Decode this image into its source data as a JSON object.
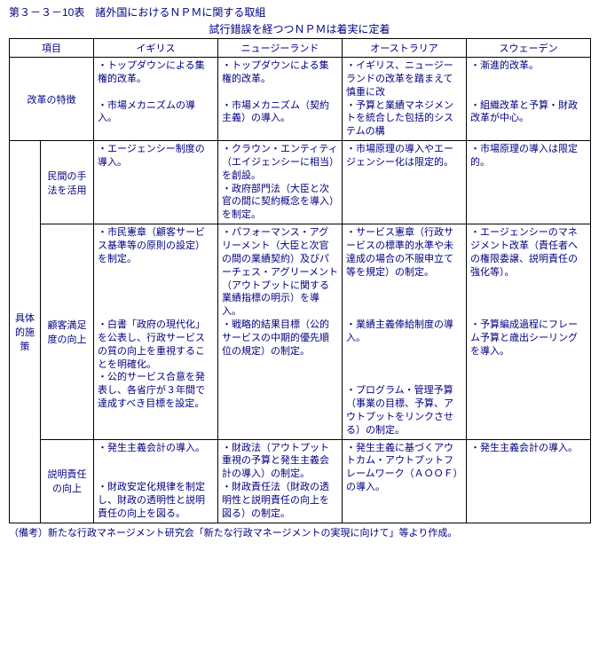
{
  "title": "第３－３－10表　諸外国におけるＮＰＭに関する取組",
  "subtitle": "試行錯誤を経つつＮＰＭは着実に定着",
  "header": {
    "item": "項目",
    "countries": [
      "イギリス",
      "ニュージーランド",
      "オーストラリア",
      "スウェーデン"
    ]
  },
  "rows": {
    "reform": {
      "label": "改革の特徴",
      "uk": "・トップダウンによる集権的改革。\n\n・市場メカニズムの導入。",
      "nz": "・トップダウンによる集権的改革。\n\n・市場メカニズム（契約主義）の導入。",
      "au": "・イギリス、ニュージーランドの改革を踏まえて慎重に改\n・予算と業績マネジメントを統合した包括的システムの構",
      "sw": "・漸進的改革。\n\n\n・組織改革と予算・財政改革が中心。"
    },
    "concreteLabel": "具体的施策",
    "private": {
      "label": "民間の手法を活用",
      "uk": "・エージェンシー制度の導入。",
      "nz": "・クラウン・エンティティ（エイジェンシーに相当）を創設。\n・政府部門法（大臣と次官の間に契約概念を導入）を制定。",
      "au": "・市場原理の導入やエージェンシー化は限定的。",
      "sw": "・市場原理の導入は限定的。"
    },
    "customer": {
      "label": "顧客満足度の向上",
      "uk": "・市民憲章（顧客サービス基準等の原則の設定）を制定。\n\n\n\n\n・白書「政府の現代化」を公表し、行政サービスの質の向上を重視することを明確化。\n・公的サービス合意を発表し、各省庁が３年間で達成すべき目標を設定。",
      "nz": "・パフォーマンス・アグリーメント（大臣と次官の間の業績契約）及びパーチェス・アグリーメント（アウトプットに関する業績指標の明示）を導入。\n・戦略的結果目標（公的サービスの中期的優先順位の規定）の制定。",
      "au": "・サービス憲章（行政サービスの標準的水準や未達成の場合の不服申立て等を規定）の制定。\n\n\n\n・業績主義俸給制度の導入。\n\n\n\n・プログラム・管理予算（事業の目標、予算、アウトプットをリンクさせる）の制定。",
      "sw": "・エージェンシーのマネジメント改革（責任者への権限委譲、説明責任の強化等）。\n\n\n\n・予算編成過程にフレーム予算と歳出シーリングを導入。"
    },
    "accountability": {
      "label": "説明責任の向上",
      "uk": "・発生主義会計の導入。\n\n\n・財政安定化規律を制定し、財政の透明性と説明責任の向上を図る。",
      "nz": "・財政法（アウトプット重視の予算と発生主義会計の導入）の制定。\n・財政責任法（財政の透明性と説明責任の向上を図る）の制定。",
      "au": "・発生主義に基づくアウトカム・アウトプットフレームワーク（ＡＯＯＦ）の導入。",
      "sw": "・発生主義会計の導入。"
    }
  },
  "footnote": "（備考）新たな行政マネージメント研究会「新たな行政マネージメントの実現に向けて」等より作成。"
}
